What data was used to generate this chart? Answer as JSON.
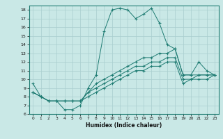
{
  "xlabel": "Humidex (Indice chaleur)",
  "xlim": [
    -0.5,
    23.5
  ],
  "ylim": [
    6,
    18.5
  ],
  "xticks": [
    0,
    1,
    2,
    3,
    4,
    5,
    6,
    7,
    8,
    9,
    10,
    11,
    12,
    13,
    14,
    15,
    16,
    17,
    18,
    19,
    20,
    21,
    22,
    23
  ],
  "yticks": [
    6,
    7,
    8,
    9,
    10,
    11,
    12,
    13,
    14,
    15,
    16,
    17,
    18
  ],
  "bg_color": "#c9e8e6",
  "line_color": "#1e7b72",
  "grid_color": "#a8cece",
  "series": [
    [
      9.5,
      8.0,
      7.5,
      7.5,
      6.5,
      6.5,
      7.0,
      9.0,
      10.5,
      15.5,
      18.0,
      18.2,
      18.0,
      17.0,
      17.5,
      18.2,
      16.5,
      14.0,
      13.5,
      10.5,
      10.5,
      12.0,
      11.0,
      10.5
    ],
    [
      8.5,
      8.0,
      7.5,
      7.5,
      7.5,
      7.5,
      7.5,
      8.5,
      9.5,
      10.0,
      10.5,
      11.0,
      11.5,
      12.0,
      12.5,
      12.5,
      13.0,
      13.0,
      13.5,
      10.5,
      10.5,
      10.5,
      10.5,
      10.5
    ],
    [
      8.5,
      8.0,
      7.5,
      7.5,
      7.5,
      7.5,
      7.5,
      8.5,
      9.0,
      9.5,
      10.0,
      10.5,
      11.0,
      11.5,
      11.5,
      12.0,
      12.0,
      12.5,
      12.5,
      10.0,
      10.0,
      10.5,
      10.5,
      10.5
    ],
    [
      8.5,
      8.0,
      7.5,
      7.5,
      7.5,
      7.5,
      7.5,
      8.0,
      8.5,
      9.0,
      9.5,
      10.0,
      10.5,
      11.0,
      11.0,
      11.5,
      11.5,
      12.0,
      12.0,
      9.5,
      10.0,
      10.0,
      10.0,
      10.5
    ]
  ]
}
